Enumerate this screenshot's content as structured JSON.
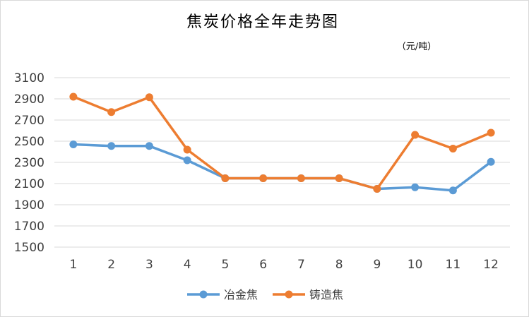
{
  "chart_data": {
    "type": "line",
    "title": "焦炭价格全年走势图",
    "unit": "（元/吨）",
    "categories": [
      "1",
      "2",
      "3",
      "4",
      "5",
      "6",
      "7",
      "8",
      "9",
      "10",
      "11",
      "12"
    ],
    "ylim": [
      1500,
      3100
    ],
    "yticks": [
      1500,
      1700,
      1900,
      2100,
      2300,
      2500,
      2700,
      2900,
      3100
    ],
    "grid": true,
    "legend_position": "bottom",
    "series": [
      {
        "name": "冶金焦",
        "color": "#5b9bd5",
        "values": [
          2470,
          2455,
          2455,
          2320,
          2150,
          2150,
          2150,
          2150,
          2050,
          2065,
          2035,
          2305
        ]
      },
      {
        "name": "铸造焦",
        "color": "#ed7d31",
        "values": [
          2920,
          2775,
          2915,
          2420,
          2150,
          2150,
          2150,
          2150,
          2050,
          2560,
          2430,
          2580
        ]
      }
    ]
  }
}
